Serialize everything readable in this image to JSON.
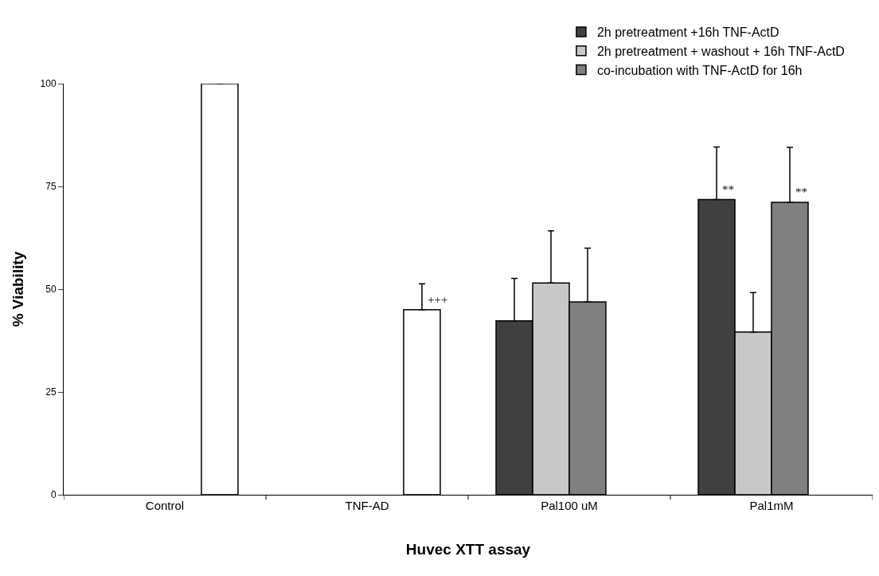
{
  "chart_data": {
    "type": "bar",
    "xlabel": "Huvec XTT assay",
    "ylabel": "% Viability",
    "categories": [
      "Control",
      "TNF-AD",
      "Pal100 uM",
      "Pal1mM"
    ],
    "series": [
      {
        "name": "2h pretreatment +16h TNF-ActD",
        "color": "#404040",
        "values": [
          null,
          null,
          42.3,
          71.8
        ],
        "errors": [
          null,
          null,
          [
            42.3,
            52.6
          ],
          [
            71.8,
            84.6
          ]
        ],
        "value_labels": [
          null,
          null,
          null,
          "**"
        ]
      },
      {
        "name": "2h pretreatment + washout + 16h TNF-ActD",
        "color": "#c8c8c8",
        "values": [
          null,
          null,
          51.5,
          39.6
        ],
        "errors": [
          null,
          null,
          [
            51.5,
            64.2
          ],
          [
            39.6,
            49.2
          ]
        ]
      },
      {
        "name": "co-incubation with TNF-ActD for 16h",
        "color": "#808080",
        "values": [
          null,
          null,
          46.9,
          71.1
        ],
        "errors": [
          null,
          null,
          [
            46.9,
            60.0
          ],
          [
            71.1,
            84.5
          ]
        ],
        "value_labels": [
          null,
          null,
          null,
          "**"
        ]
      },
      {
        "color": "#ffffff",
        "values": [
          100,
          45.0,
          null,
          null
        ],
        "errors": [
          [
            100,
            100
          ],
          [
            45.0,
            51.3
          ],
          null,
          null
        ],
        "value_labels": [
          null,
          "+++",
          null,
          null
        ]
      }
    ],
    "ylim": [
      0,
      100
    ],
    "yticks": [
      0,
      25,
      50,
      75,
      100
    ],
    "legend": "top right"
  }
}
